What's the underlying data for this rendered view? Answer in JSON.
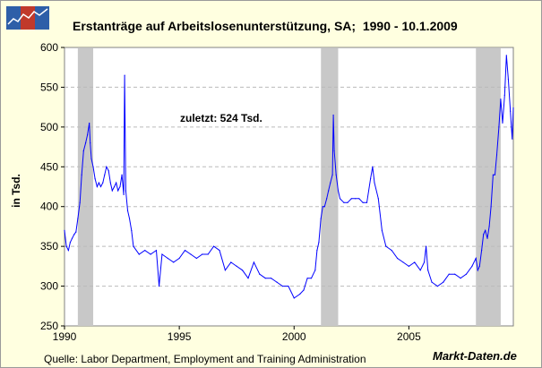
{
  "brand": {
    "logo_icon": "rising-line-chart-logo-icon",
    "logo_colors": [
      "#2e5fa8",
      "#c0392b"
    ],
    "watermark": "Markt-Daten.de"
  },
  "source_note": "Quelle: Labor Department, Employment and Training Administration",
  "chart_data": {
    "type": "line",
    "title": "Erstanträge auf Arbeitslosenunterstützung, SA;  1990 - 10.1.2009",
    "ylabel": "in Tsd.",
    "xlabel": "",
    "annotation": "zuletzt: 524 Tsd.",
    "xlim": [
      1990.0,
      2009.55
    ],
    "ylim": [
      250,
      600
    ],
    "x_ticks": [
      1990,
      1995,
      2000,
      2005
    ],
    "x_tick_labels": [
      "1990",
      "1995",
      "2000",
      "2005"
    ],
    "y_ticks": [
      250,
      300,
      350,
      400,
      450,
      500,
      550,
      600
    ],
    "y_tick_labels": [
      "250",
      "300",
      "350",
      "400",
      "450",
      "500",
      "550",
      "600"
    ],
    "grid": "horizontal dashed",
    "line_color": "#0000ff",
    "recession_color": "#c8c8c8",
    "recession_periods": [
      [
        1990.58,
        1991.25
      ],
      [
        2001.17,
        2001.92
      ],
      [
        2007.92,
        2009.0
      ]
    ],
    "series": [
      {
        "x": [
          1990.0,
          1990.08,
          1990.17,
          1990.25,
          1990.33,
          1990.42,
          1990.5,
          1990.58,
          1990.67,
          1990.75,
          1990.83,
          1990.92,
          1991.0,
          1991.08,
          1991.12,
          1991.17,
          1991.25,
          1991.33,
          1991.42,
          1991.5,
          1991.58,
          1991.67,
          1991.75,
          1991.83,
          1991.92,
          1992.0,
          1992.08,
          1992.17,
          1992.25,
          1992.33,
          1992.42,
          1992.5,
          1992.58,
          1992.62,
          1992.67,
          1992.75,
          1992.83,
          1992.92,
          1993.0,
          1993.25,
          1993.5,
          1993.75,
          1994.0,
          1994.12,
          1994.25,
          1994.5,
          1994.75,
          1995.0,
          1995.25,
          1995.5,
          1995.75,
          1996.0,
          1996.25,
          1996.5,
          1996.75,
          1997.0,
          1997.25,
          1997.5,
          1997.75,
          1998.0,
          1998.25,
          1998.5,
          1998.75,
          1999.0,
          1999.25,
          1999.5,
          1999.75,
          2000.0,
          2000.25,
          2000.42,
          2000.58,
          2000.75,
          2000.92,
          2001.0,
          2001.08,
          2001.17,
          2001.25,
          2001.33,
          2001.42,
          2001.5,
          2001.58,
          2001.67,
          2001.71,
          2001.75,
          2001.83,
          2001.92,
          2002.0,
          2002.17,
          2002.33,
          2002.5,
          2002.67,
          2002.83,
          2003.0,
          2003.17,
          2003.33,
          2003.42,
          2003.5,
          2003.67,
          2003.83,
          2004.0,
          2004.25,
          2004.5,
          2004.75,
          2005.0,
          2005.25,
          2005.5,
          2005.67,
          2005.75,
          2005.83,
          2006.0,
          2006.25,
          2006.5,
          2006.75,
          2007.0,
          2007.25,
          2007.5,
          2007.75,
          2007.92,
          2008.0,
          2008.08,
          2008.17,
          2008.25,
          2008.33,
          2008.42,
          2008.5,
          2008.58,
          2008.67,
          2008.75,
          2008.83,
          2008.92,
          2009.0,
          2009.08,
          2009.17,
          2009.25,
          2009.33,
          2009.42,
          2009.5,
          2009.55
        ],
        "y": [
          370,
          350,
          345,
          355,
          360,
          365,
          368,
          385,
          405,
          440,
          470,
          480,
          490,
          505,
          480,
          460,
          450,
          435,
          425,
          430,
          425,
          430,
          440,
          450,
          445,
          430,
          420,
          425,
          430,
          420,
          425,
          440,
          415,
          565,
          420,
          395,
          385,
          370,
          350,
          340,
          345,
          340,
          345,
          300,
          340,
          335,
          330,
          335,
          345,
          340,
          335,
          340,
          340,
          350,
          345,
          320,
          330,
          325,
          320,
          310,
          330,
          315,
          310,
          310,
          305,
          300,
          300,
          285,
          290,
          295,
          310,
          310,
          320,
          345,
          355,
          385,
          400,
          400,
          410,
          420,
          430,
          440,
          515,
          470,
          440,
          420,
          410,
          405,
          405,
          410,
          410,
          410,
          405,
          405,
          435,
          450,
          430,
          410,
          370,
          350,
          345,
          335,
          330,
          325,
          330,
          320,
          330,
          350,
          320,
          305,
          300,
          305,
          315,
          315,
          310,
          315,
          325,
          335,
          320,
          325,
          345,
          365,
          370,
          360,
          375,
          400,
          440,
          440,
          465,
          500,
          535,
          505,
          540,
          590,
          560,
          520,
          485,
          524
        ]
      }
    ]
  }
}
